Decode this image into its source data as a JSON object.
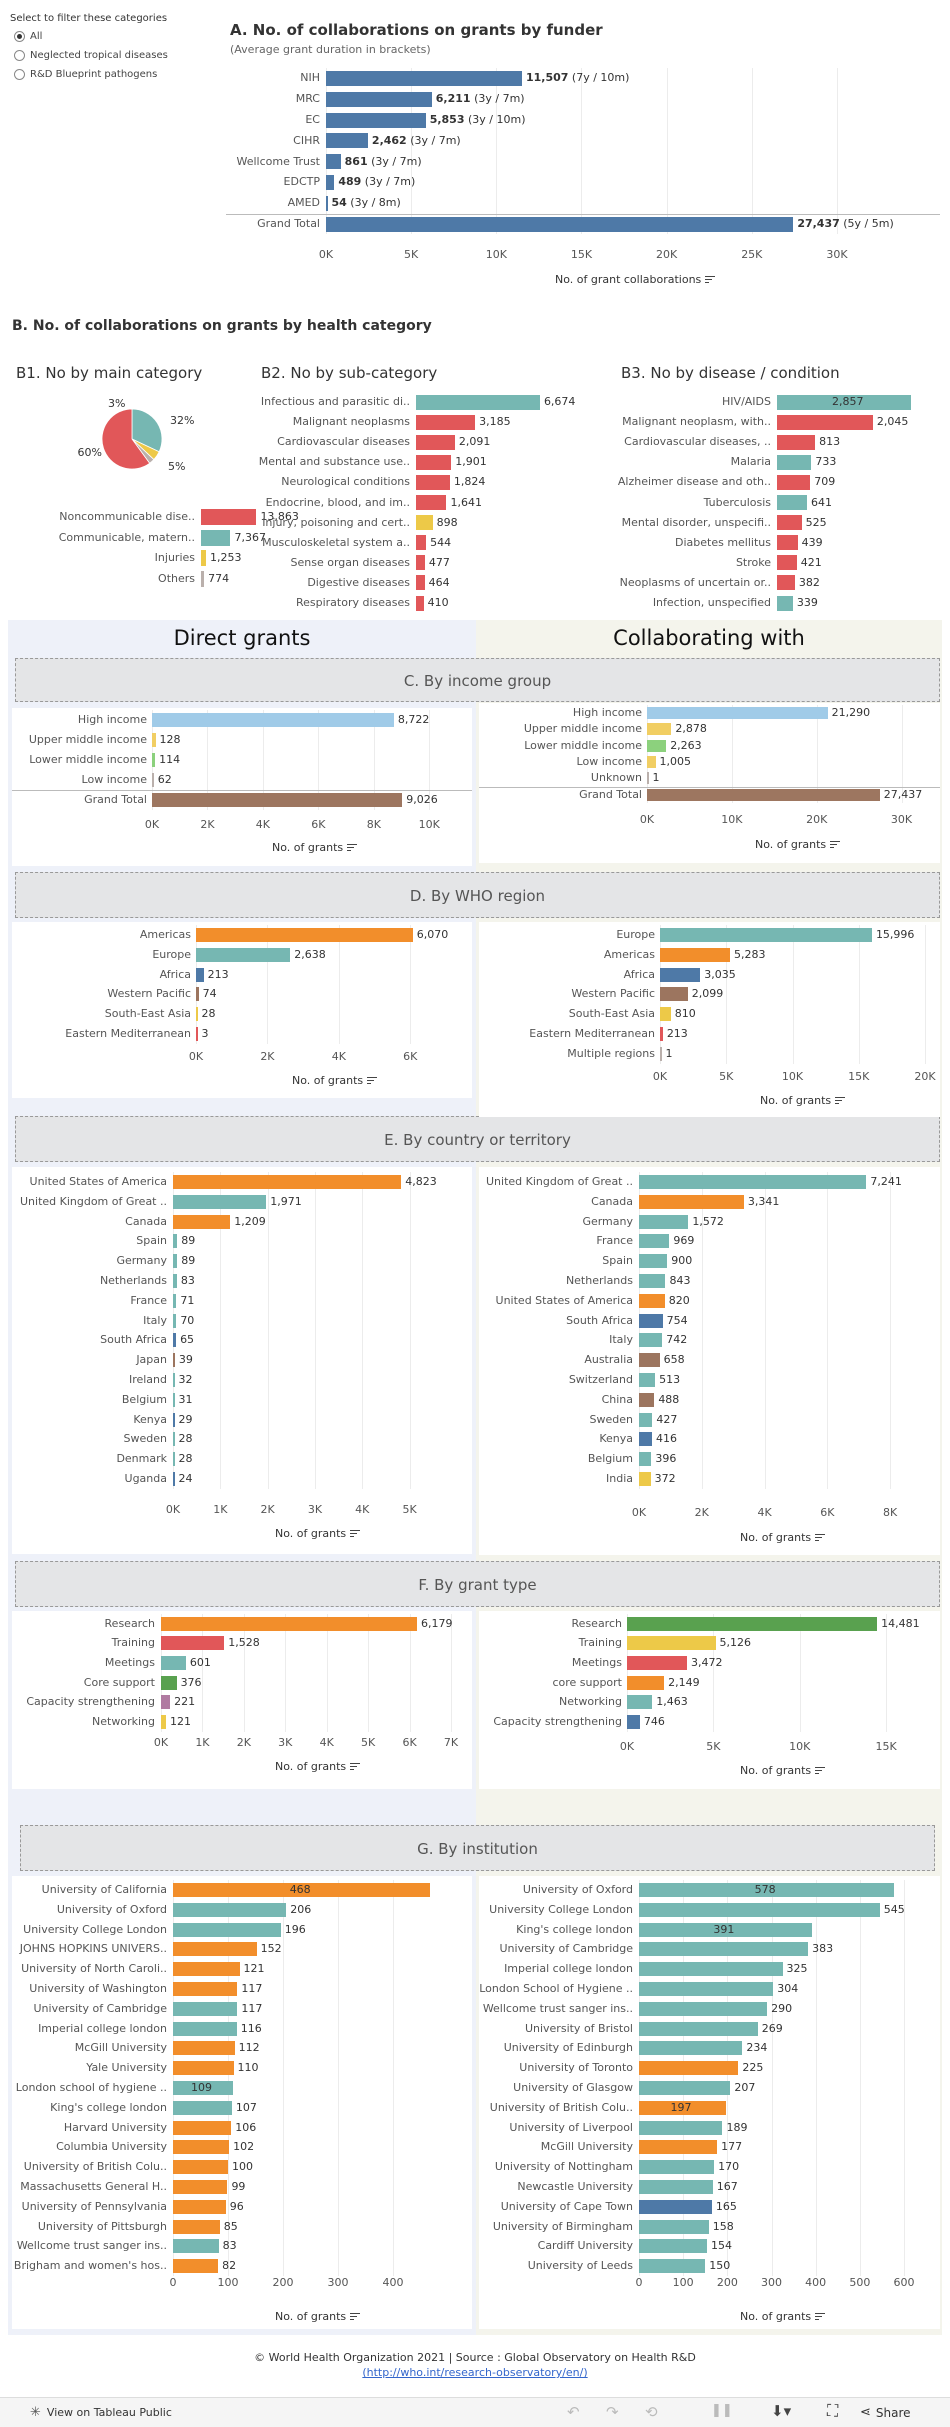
{
  "filter": {
    "title": "Select to filter these categories",
    "options": [
      "All",
      "Neglected tropical diseases",
      "R&D Blueprint pathogens"
    ],
    "selected": "All"
  },
  "sectionA": {
    "title": "A. No. of collaborations on grants by funder",
    "subtitle": "(Average grant duration in brackets)",
    "axis_title": "No. of grant collaborations"
  },
  "sectionB": {
    "title": "B. No. of collaborations on grants by health category",
    "b1_title": "B1. No by main category",
    "b2_title": "B2. No by sub-category",
    "b3_title": "B3. No by disease / condition"
  },
  "columns": {
    "left": "Direct grants",
    "right": "Collaborating with"
  },
  "sections": {
    "c": "C. By income group",
    "d": "D. By WHO region",
    "e": "E. By country or territory",
    "f": "F. By grant type",
    "g": "G. By institution"
  },
  "axis_title_grants": "No. of grants",
  "footer": {
    "line1": "© World Health Organization 2021 | Source : Global Observatory on Health R&D",
    "link": "(http://who.int/research-observatory/en/)"
  },
  "toolbar": {
    "view_label": "View on Tableau Public",
    "share_label": "Share"
  },
  "chart_data": [
    {
      "id": "A",
      "type": "bar",
      "orientation": "horizontal",
      "categories": [
        "NIH",
        "MRC",
        "EC",
        "CIHR",
        "Wellcome Trust",
        "EDCTP",
        "AMED",
        "Grand Total"
      ],
      "values": [
        11507,
        6211,
        5853,
        2462,
        861,
        489,
        54,
        27437
      ],
      "value_labels": [
        "11,507",
        "6,211",
        "5,853",
        "2,462",
        "861",
        "489",
        "54",
        "27,437"
      ],
      "annotations": [
        "(7y / 10m)",
        "(3y / 7m)",
        "(3y / 10m)",
        "(3y / 7m)",
        "(3y / 7m)",
        "(3y / 7m)",
        "(3y / 8m)",
        "(5y / 5m)"
      ],
      "xticks": [
        "0K",
        "5K",
        "10K",
        "15K",
        "20K",
        "25K",
        "30K"
      ],
      "xlim": [
        0,
        31000
      ]
    },
    {
      "id": "B1-pie",
      "type": "pie",
      "slices": [
        {
          "label": "Noncommunicable diseases",
          "percent": 60,
          "color": "#e15759"
        },
        {
          "label": "Communicable diseases",
          "percent": 32,
          "color": "#76b7b2"
        },
        {
          "label": "Injuries",
          "percent": 5,
          "color": "#edc948"
        },
        {
          "label": "Others",
          "percent": 3,
          "color": "#bab0ac"
        }
      ],
      "pie_labels": [
        "60%",
        "32%",
        "5%",
        "3%"
      ]
    },
    {
      "id": "B1-bars",
      "type": "bar",
      "orientation": "horizontal",
      "categories": [
        "Noncommunicable dise..",
        "Communicable, matern..",
        "Injuries",
        "Others"
      ],
      "values": [
        13863,
        7367,
        1253,
        774
      ],
      "value_labels": [
        "13,863",
        "7,367",
        "1,253",
        "774"
      ],
      "colors": [
        "#e15759",
        "#76b7b2",
        "#edc948",
        "#bab0ac"
      ],
      "xlim": [
        0,
        15000
      ]
    },
    {
      "id": "B2",
      "type": "bar",
      "orientation": "horizontal",
      "categories": [
        "Infectious and parasitic di..",
        "Malignant neoplasms",
        "Cardiovascular diseases",
        "Mental and substance use..",
        "Neurological conditions",
        "Endocrine, blood, and im..",
        "Injury, poisoning and cert..",
        "Musculoskeletal system a..",
        "Sense organ diseases",
        "Digestive diseases",
        "Respiratory diseases"
      ],
      "values": [
        6674,
        3185,
        2091,
        1901,
        1824,
        1641,
        898,
        544,
        477,
        464,
        410
      ],
      "value_labels": [
        "6,674",
        "3,185",
        "2,091",
        "1,901",
        "1,824",
        "1,641",
        "898",
        "544",
        "477",
        "464",
        "410"
      ],
      "colors": [
        "#76b7b2",
        "#e15759",
        "#e15759",
        "#e15759",
        "#e15759",
        "#e15759",
        "#edc948",
        "#e15759",
        "#e15759",
        "#e15759",
        "#e15759"
      ],
      "xlim": [
        0,
        7000
      ]
    },
    {
      "id": "B3",
      "type": "bar",
      "orientation": "horizontal",
      "categories": [
        "HIV/AIDS",
        "Malignant neoplasm, with..",
        "Cardiovascular diseases, ..",
        "Malaria",
        "Alzheimer disease and oth..",
        "Tuberculosis",
        "Mental disorder, unspecifi..",
        "Diabetes mellitus",
        "Stroke",
        "Neoplasms of uncertain or..",
        "Infection, unspecified"
      ],
      "values": [
        2857,
        2045,
        813,
        733,
        709,
        641,
        525,
        439,
        421,
        382,
        339
      ],
      "value_labels": [
        "2,857",
        "2,045",
        "813",
        "733",
        "709",
        "641",
        "525",
        "439",
        "421",
        "382",
        "339"
      ],
      "colors": [
        "#76b7b2",
        "#e15759",
        "#e15759",
        "#76b7b2",
        "#e15759",
        "#76b7b2",
        "#e15759",
        "#e15759",
        "#e15759",
        "#e15759",
        "#76b7b2"
      ],
      "xlim": [
        0,
        2900
      ]
    },
    {
      "id": "C-left",
      "type": "bar",
      "orientation": "horizontal",
      "categories": [
        "High income",
        "Upper middle income",
        "Lower middle income",
        "Low income",
        "Grand Total"
      ],
      "values": [
        8722,
        128,
        114,
        62,
        9026
      ],
      "value_labels": [
        "8,722",
        "128",
        "114",
        "62",
        "9,026"
      ],
      "colors": [
        "#a0cbe8",
        "#f1ce63",
        "#8cd17d",
        "#bab0ac",
        "#9d7660"
      ],
      "xticks": [
        "0K",
        "2K",
        "4K",
        "6K",
        "8K",
        "10K"
      ],
      "xlim": [
        0,
        11000
      ]
    },
    {
      "id": "C-right",
      "type": "bar",
      "orientation": "horizontal",
      "categories": [
        "High income",
        "Upper middle income",
        "Lower middle income",
        "Low income",
        "Unknown",
        "Grand Total"
      ],
      "values": [
        21290,
        2878,
        2263,
        1005,
        1,
        27437
      ],
      "value_labels": [
        "21,290",
        "2,878",
        "2,263",
        "1,005",
        "1",
        "27,437"
      ],
      "colors": [
        "#a0cbe8",
        "#f1ce63",
        "#8cd17d",
        "#f1ce63",
        "#bab0ac",
        "#9d7660"
      ],
      "xticks": [
        "0K",
        "10K",
        "20K",
        "30K"
      ],
      "xlim": [
        0,
        33000
      ]
    },
    {
      "id": "D-left",
      "type": "bar",
      "orientation": "horizontal",
      "categories": [
        "Americas",
        "Europe",
        "Africa",
        "Western Pacific",
        "South-East Asia",
        "Eastern Mediterranean"
      ],
      "values": [
        6070,
        2638,
        213,
        74,
        28,
        3
      ],
      "value_labels": [
        "6,070",
        "2,638",
        "213",
        "74",
        "28",
        "3"
      ],
      "colors": [
        "#f28e2b",
        "#76b7b2",
        "#4e79a7",
        "#9c755f",
        "#edc948",
        "#e15759"
      ],
      "xticks": [
        "0K",
        "2K",
        "4K",
        "6K"
      ],
      "xlim": [
        0,
        7000
      ]
    },
    {
      "id": "D-right",
      "type": "bar",
      "orientation": "horizontal",
      "categories": [
        "Europe",
        "Americas",
        "Africa",
        "Western Pacific",
        "South-East Asia",
        "Eastern Mediterranean",
        "Multiple regions"
      ],
      "values": [
        15996,
        5283,
        3035,
        2099,
        810,
        213,
        1
      ],
      "value_labels": [
        "15,996",
        "5,283",
        "3,035",
        "2,099",
        "810",
        "213",
        "1"
      ],
      "colors": [
        "#76b7b2",
        "#f28e2b",
        "#4e79a7",
        "#9c755f",
        "#edc948",
        "#e15759",
        "#bab0ac"
      ],
      "xticks": [
        "0K",
        "5K",
        "10K",
        "15K",
        "20K"
      ],
      "xlim": [
        0,
        20000
      ]
    },
    {
      "id": "E-left",
      "type": "bar",
      "orientation": "horizontal",
      "categories": [
        "United States of America",
        "United Kingdom of Great ..",
        "Canada",
        "Spain",
        "Germany",
        "Netherlands",
        "France",
        "Italy",
        "South Africa",
        "Japan",
        "Ireland",
        "Belgium",
        "Kenya",
        "Sweden",
        "Denmark",
        "Uganda"
      ],
      "values": [
        4823,
        1971,
        1209,
        89,
        89,
        83,
        71,
        70,
        65,
        39,
        32,
        31,
        29,
        28,
        28,
        24
      ],
      "value_labels": [
        "4,823",
        "1,971",
        "1,209",
        "89",
        "89",
        "83",
        "71",
        "70",
        "65",
        "39",
        "32",
        "31",
        "29",
        "28",
        "28",
        "24"
      ],
      "colors": [
        "#f28e2b",
        "#76b7b2",
        "#f28e2b",
        "#76b7b2",
        "#76b7b2",
        "#76b7b2",
        "#76b7b2",
        "#76b7b2",
        "#4e79a7",
        "#9c755f",
        "#76b7b2",
        "#76b7b2",
        "#4e79a7",
        "#76b7b2",
        "#76b7b2",
        "#4e79a7"
      ],
      "xticks": [
        "0K",
        "1K",
        "2K",
        "3K",
        "4K",
        "5K"
      ],
      "xlim": [
        0,
        5600
      ]
    },
    {
      "id": "E-right",
      "type": "bar",
      "orientation": "horizontal",
      "categories": [
        "United Kingdom of Great ..",
        "Canada",
        "Germany",
        "France",
        "Spain",
        "Netherlands",
        "United States of America",
        "South Africa",
        "Italy",
        "Australia",
        "Switzerland",
        "China",
        "Sweden",
        "Kenya",
        "Belgium",
        "India"
      ],
      "values": [
        7241,
        3341,
        1572,
        969,
        900,
        843,
        820,
        754,
        742,
        658,
        513,
        488,
        427,
        416,
        396,
        372
      ],
      "value_labels": [
        "7,241",
        "3,341",
        "1,572",
        "969",
        "900",
        "843",
        "820",
        "754",
        "742",
        "658",
        "513",
        "488",
        "427",
        "416",
        "396",
        "372"
      ],
      "colors": [
        "#76b7b2",
        "#f28e2b",
        "#76b7b2",
        "#76b7b2",
        "#76b7b2",
        "#76b7b2",
        "#f28e2b",
        "#4e79a7",
        "#76b7b2",
        "#9c755f",
        "#76b7b2",
        "#9c755f",
        "#76b7b2",
        "#4e79a7",
        "#76b7b2",
        "#edc948"
      ],
      "xticks": [
        "0K",
        "2K",
        "4K",
        "6K",
        "8K"
      ],
      "xlim": [
        0,
        8600
      ]
    },
    {
      "id": "F-left",
      "type": "bar",
      "orientation": "horizontal",
      "categories": [
        "Research",
        "Training",
        "Meetings",
        "Core support",
        "Capacity strengthening",
        "Networking"
      ],
      "values": [
        6179,
        1528,
        601,
        376,
        221,
        121
      ],
      "value_labels": [
        "6,179",
        "1,528",
        "601",
        "376",
        "221",
        "121"
      ],
      "colors": [
        "#f28e2b",
        "#e15759",
        "#76b7b2",
        "#59a14f",
        "#b07aa1",
        "#edc948"
      ],
      "xticks": [
        "0K",
        "1K",
        "2K",
        "3K",
        "4K",
        "5K",
        "6K",
        "7K"
      ],
      "xlim": [
        0,
        7000
      ]
    },
    {
      "id": "F-right",
      "type": "bar",
      "orientation": "horizontal",
      "categories": [
        "Research",
        "Training",
        "Meetings",
        "core support",
        "Networking",
        "Capacity strengthening"
      ],
      "values": [
        14481,
        5126,
        3472,
        2149,
        1463,
        746
      ],
      "value_labels": [
        "14,481",
        "5,126",
        "3,472",
        "2,149",
        "1,463",
        "746"
      ],
      "colors": [
        "#59a14f",
        "#edc948",
        "#e15759",
        "#f28e2b",
        "#76b7b2",
        "#4e79a7"
      ],
      "xticks": [
        "0K",
        "5K",
        "10K",
        "15K"
      ],
      "xlim": [
        0,
        16500
      ]
    },
    {
      "id": "G-left",
      "type": "bar",
      "orientation": "horizontal",
      "categories": [
        "University of California",
        "University of Oxford",
        "University College London",
        "JOHNS HOPKINS UNIVERS..",
        "University of North Caroli..",
        "University of Washington",
        "University of Cambridge",
        "Imperial college london",
        "McGill University",
        "Yale University",
        "London school of hygiene ..",
        "King's college london",
        "Harvard University",
        "Columbia University",
        "University of British Colu..",
        "Massachusetts General H..",
        "University of Pennsylvania",
        "University of Pittsburgh",
        "Wellcome trust sanger ins..",
        "Brigham and women's hos.."
      ],
      "values": [
        468,
        206,
        196,
        152,
        121,
        117,
        117,
        116,
        112,
        110,
        109,
        107,
        106,
        102,
        100,
        99,
        96,
        85,
        83,
        82
      ],
      "value_labels": [
        "468",
        "206",
        "196",
        "152",
        "121",
        "117",
        "117",
        "116",
        "112",
        "110",
        "109",
        "107",
        "106",
        "102",
        "100",
        "99",
        "96",
        "85",
        "83",
        "82"
      ],
      "colors": [
        "#f28e2b",
        "#76b7b2",
        "#76b7b2",
        "#f28e2b",
        "#f28e2b",
        "#f28e2b",
        "#76b7b2",
        "#76b7b2",
        "#f28e2b",
        "#f28e2b",
        "#76b7b2",
        "#76b7b2",
        "#f28e2b",
        "#f28e2b",
        "#f28e2b",
        "#f28e2b",
        "#f28e2b",
        "#f28e2b",
        "#76b7b2",
        "#f28e2b"
      ],
      "xticks": [
        "0",
        "100",
        "200",
        "300",
        "400"
      ],
      "xlim": [
        0,
        480
      ]
    },
    {
      "id": "G-right",
      "type": "bar",
      "orientation": "horizontal",
      "categories": [
        "University of Oxford",
        "University College London",
        "King's college london",
        "University of Cambridge",
        "Imperial college london",
        "London School of Hygiene ..",
        "Wellcome trust sanger ins..",
        "University of Bristol",
        "University of Edinburgh",
        "University of Toronto",
        "University of Glasgow",
        "University of British Colu..",
        "University of Liverpool",
        "McGill University",
        "University of Nottingham",
        "Newcastle University",
        "University of Cape Town",
        "University of Birmingham",
        "Cardiff University",
        "University of Leeds"
      ],
      "values": [
        578,
        545,
        391,
        383,
        325,
        304,
        290,
        269,
        234,
        225,
        207,
        197,
        189,
        177,
        170,
        167,
        165,
        158,
        154,
        150
      ],
      "value_labels": [
        "578",
        "545",
        "391",
        "383",
        "325",
        "304",
        "290",
        "269",
        "234",
        "225",
        "207",
        "197",
        "189",
        "177",
        "170",
        "167",
        "165",
        "158",
        "154",
        "150"
      ],
      "colors": [
        "#76b7b2",
        "#76b7b2",
        "#76b7b2",
        "#76b7b2",
        "#76b7b2",
        "#76b7b2",
        "#76b7b2",
        "#76b7b2",
        "#76b7b2",
        "#f28e2b",
        "#76b7b2",
        "#f28e2b",
        "#76b7b2",
        "#f28e2b",
        "#76b7b2",
        "#76b7b2",
        "#4e79a7",
        "#76b7b2",
        "#76b7b2",
        "#76b7b2"
      ],
      "xticks": [
        "0",
        "100",
        "200",
        "300",
        "400",
        "500",
        "600"
      ],
      "xlim": [
        0,
        600
      ]
    }
  ]
}
